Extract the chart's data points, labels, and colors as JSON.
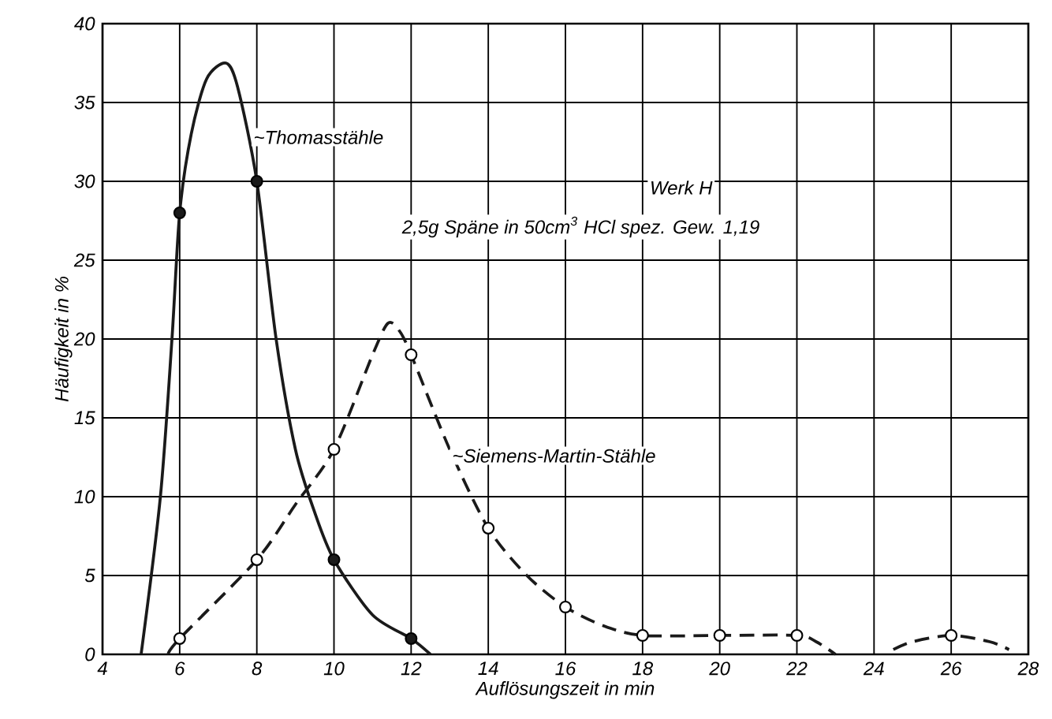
{
  "chart_data": {
    "type": "line",
    "xlabel": "Auflösungszeit in min",
    "ylabel": "Häufigkeit in %",
    "xlim": [
      4,
      28
    ],
    "xticks": [
      4,
      6,
      8,
      10,
      12,
      14,
      16,
      18,
      20,
      22,
      24,
      26,
      28
    ],
    "ylim": [
      0,
      40
    ],
    "yticks": [
      0,
      5,
      10,
      15,
      20,
      25,
      30,
      35,
      40
    ],
    "grid": true,
    "annotations": [
      "Werk H",
      "2,5g Späne in 50cm$^{3}$ HCl  spez. Gew. 1,19"
    ],
    "series": [
      {
        "name": "~Thomasstähle",
        "color": "#1a1a1a",
        "line_style": "solid",
        "marker": "none",
        "x": [
          5,
          5.5,
          5.8,
          6,
          6.3,
          6.7,
          7.2,
          7.5,
          8,
          8.5,
          9,
          9.5,
          10,
          11,
          12,
          12.5
        ],
        "values": [
          0,
          10,
          20,
          28,
          33,
          36.5,
          37.5,
          36,
          30,
          20,
          13,
          9,
          6,
          2.5,
          1,
          0
        ]
      },
      {
        "name": "~Siemens-Martin-Stähle",
        "color": "#1a1a1a",
        "line_style": "dashed",
        "marker": "none",
        "x": [
          5.7,
          6,
          8,
          9,
          10,
          11,
          11.4,
          11.7,
          12,
          13,
          14,
          15,
          16,
          17,
          18,
          20,
          22,
          22.5,
          23,
          23.8,
          24.5,
          25,
          26,
          27,
          27.5
        ],
        "values": [
          0,
          1,
          6,
          9.5,
          13,
          19,
          21,
          20.5,
          19,
          13,
          8,
          5,
          3,
          1.8,
          1.2,
          1.2,
          1.2,
          0.8,
          0,
          null,
          0.3,
          0.8,
          1.2,
          0.8,
          0.3
        ]
      },
      {
        "type": "scatter",
        "color": "#1a1a1a",
        "marker": "circle",
        "x": [
          6,
          8,
          10,
          12
        ],
        "values": [
          28,
          30,
          6,
          1
        ]
      },
      {
        "type": "scatter",
        "color": "#ffffff",
        "marker": "circle",
        "x": [
          6,
          8,
          10,
          12,
          14,
          16,
          18,
          20,
          22,
          26
        ],
        "values": [
          1,
          6,
          13,
          19,
          8,
          3,
          1.2,
          1.2,
          1.2,
          1.2
        ]
      }
    ]
  }
}
